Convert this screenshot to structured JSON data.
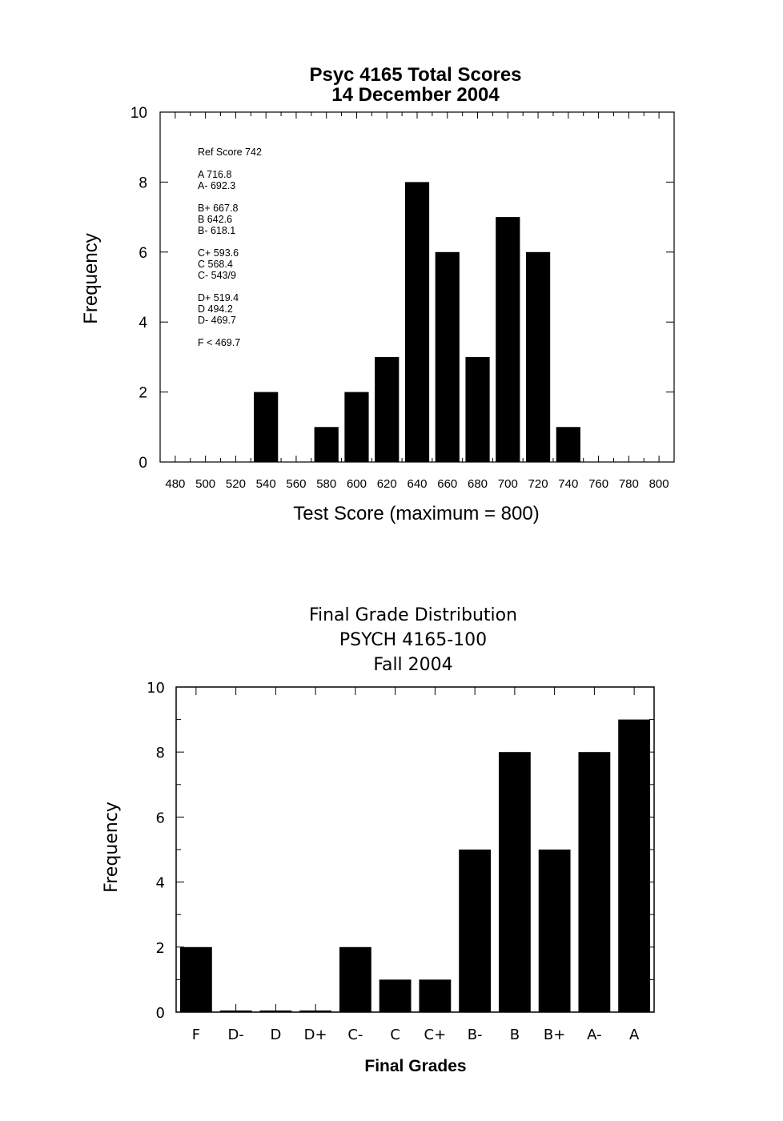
{
  "chart_data": [
    {
      "type": "bar",
      "title": "Psyc 4165 Total Scores",
      "subtitle": "14 December 2004",
      "xlabel": "Test Score (maximum = 800)",
      "ylabel": "Frequency",
      "xlim": [
        470,
        810
      ],
      "ylim": [
        0,
        10
      ],
      "x_ticks": [
        "480",
        "500",
        "520",
        "540",
        "560",
        "580",
        "600",
        "620",
        "640",
        "660",
        "680",
        "700",
        "720",
        "740",
        "760",
        "780",
        "800"
      ],
      "y_ticks": [
        "0",
        "2",
        "4",
        "6",
        "8",
        "10"
      ],
      "categories": [
        540,
        580,
        600,
        620,
        640,
        660,
        680,
        700,
        720,
        740
      ],
      "values": [
        2,
        1,
        2,
        3,
        8,
        6,
        3,
        7,
        6,
        1
      ],
      "annotations": [
        {
          "text": "Ref Score 742"
        },
        {
          "text": "A   716.8"
        },
        {
          "text": "A-   692.3"
        },
        {
          "text": "B+  667.8"
        },
        {
          "text": "B   642.6"
        },
        {
          "text": "B-   618.1"
        },
        {
          "text": "C+  593.6"
        },
        {
          "text": "C   568.4"
        },
        {
          "text": "C-   543/9"
        },
        {
          "text": "D+  519.4"
        },
        {
          "text": "D   494.2"
        },
        {
          "text": "D-   469.7"
        },
        {
          "text": "F  <  469.7"
        }
      ]
    },
    {
      "type": "bar",
      "title_lines": [
        "Final Grade Distribution",
        "PSYCH 4165-100",
        "Fall 2004"
      ],
      "xlabel": "Final Grades",
      "ylabel": "Frequency",
      "ylim": [
        0,
        10
      ],
      "y_ticks": [
        "0",
        "2",
        "4",
        "6",
        "8",
        "10"
      ],
      "categories": [
        "F",
        "D-",
        "D",
        "D+",
        "C-",
        "C",
        "C+",
        "B-",
        "B",
        "B+",
        "A-",
        "A"
      ],
      "values": [
        2,
        0,
        0,
        0,
        2,
        1,
        1,
        5,
        8,
        5,
        8,
        9
      ]
    }
  ]
}
